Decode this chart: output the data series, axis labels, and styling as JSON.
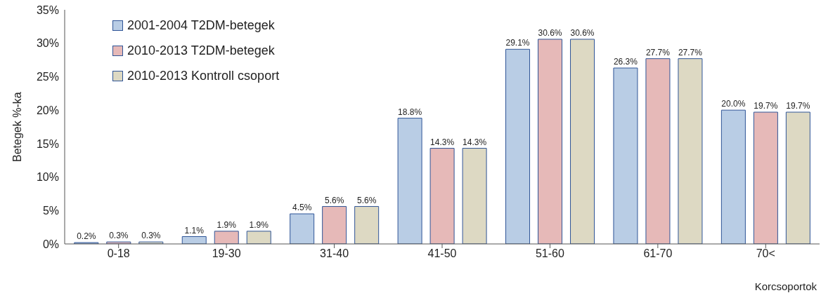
{
  "chart_data": {
    "type": "bar",
    "xlabel": "Korcsoportok",
    "ylabel": "Betegek %-ka",
    "categories": [
      "0-18",
      "19-30",
      "31-40",
      "41-50",
      "51-60",
      "61-70",
      "70<"
    ],
    "series": [
      {
        "name": "2001-2004 T2DM-betegek",
        "color": "#b9cde5",
        "values": [
          0.2,
          1.1,
          4.5,
          18.8,
          29.1,
          26.3,
          20.0
        ],
        "value_labels": [
          "0.2%",
          "1.1%",
          "4.5%",
          "18.8%",
          "29.1%",
          "26.3%",
          "20.0%"
        ]
      },
      {
        "name": "2010-2013 T2DM-betegek",
        "color": "#e6b9b8",
        "values": [
          0.3,
          1.9,
          5.6,
          14.3,
          30.6,
          27.7,
          19.7
        ],
        "value_labels": [
          "0.3%",
          "1.9%",
          "5.6%",
          "14.3%",
          "30.6%",
          "27.7%",
          "19.7%"
        ]
      },
      {
        "name": "2010-2013 Kontroll csoport",
        "color": "#ddd9c3",
        "values": [
          0.3,
          1.9,
          5.6,
          14.3,
          30.6,
          27.7,
          19.7
        ],
        "value_labels": [
          "0.3%",
          "1.9%",
          "5.6%",
          "14.3%",
          "30.6%",
          "27.7%",
          "19.7%"
        ]
      }
    ],
    "ylim": [
      0,
      35
    ],
    "yticks": [
      {
        "value": 0,
        "label": "0%"
      },
      {
        "value": 5,
        "label": "5%"
      },
      {
        "value": 10,
        "label": "10%"
      },
      {
        "value": 15,
        "label": "15%"
      },
      {
        "value": 20,
        "label": "20%"
      },
      {
        "value": 25,
        "label": "25%"
      },
      {
        "value": 30,
        "label": "30%"
      },
      {
        "value": 35,
        "label": "35%"
      }
    ],
    "grid": false,
    "legend": "top left"
  }
}
